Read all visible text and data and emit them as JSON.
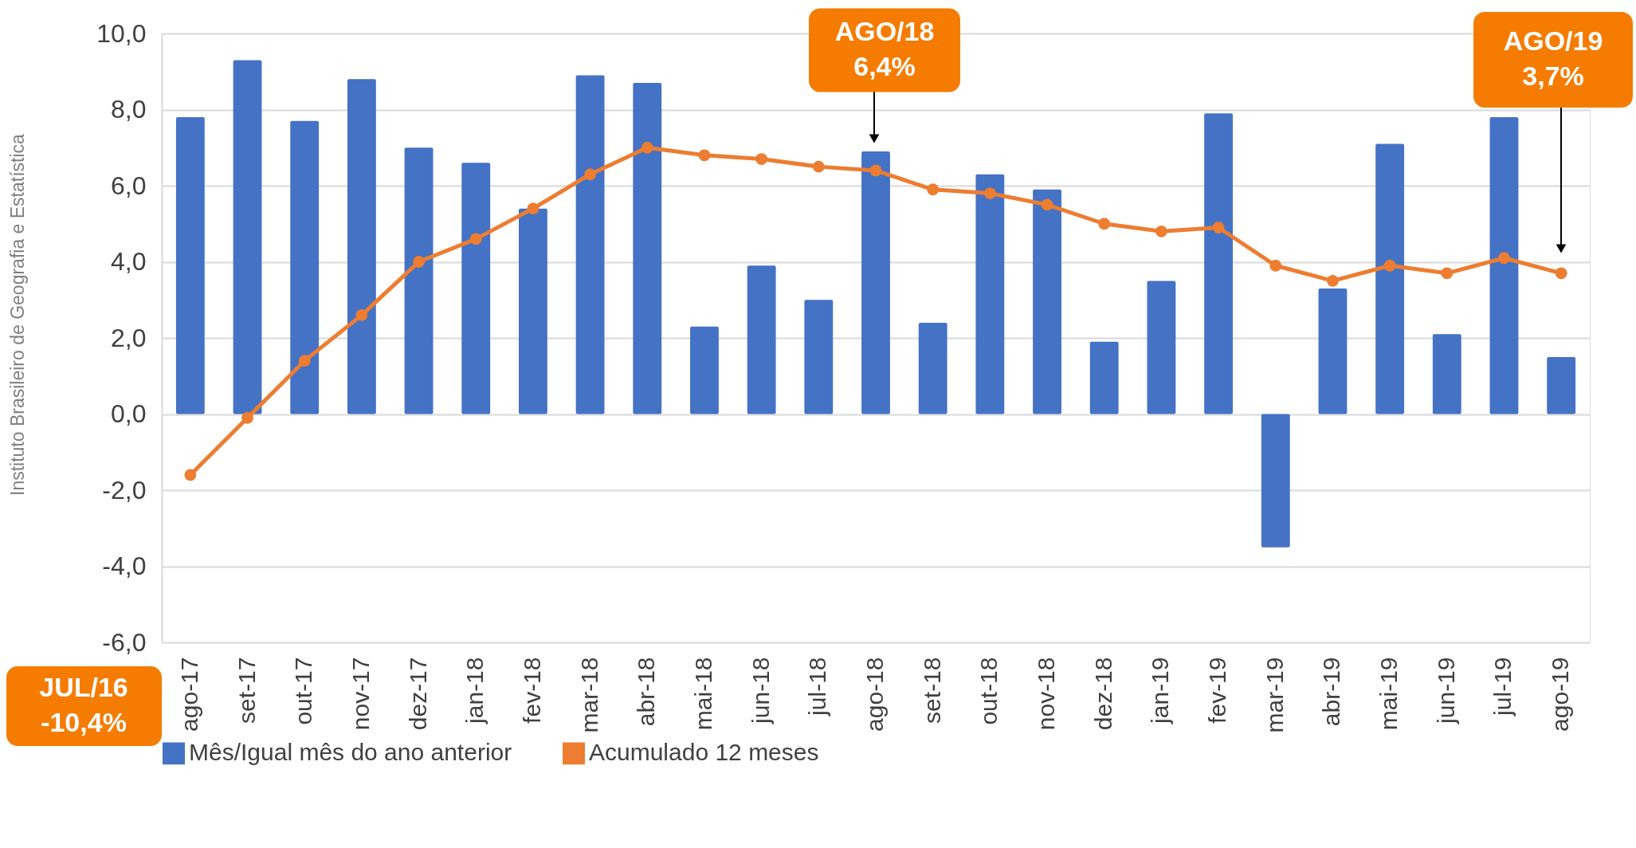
{
  "chart_data": {
    "type": "bar",
    "categories": [
      "ago-17",
      "set-17",
      "out-17",
      "nov-17",
      "dez-17",
      "jan-18",
      "fev-18",
      "mar-18",
      "abr-18",
      "mai-18",
      "jun-18",
      "jul-18",
      "ago-18",
      "set-18",
      "out-18",
      "nov-18",
      "dez-18",
      "jan-19",
      "fev-19",
      "mar-19",
      "abr-19",
      "mai-19",
      "jun-19",
      "jul-19",
      "ago-19"
    ],
    "series": [
      {
        "name": "Mês/Igual mês do ano anterior",
        "color": "#4472c4",
        "values": [
          7.8,
          9.3,
          7.7,
          8.8,
          7.0,
          6.6,
          5.4,
          8.9,
          8.7,
          2.3,
          3.9,
          3.0,
          6.9,
          2.4,
          6.3,
          5.9,
          1.9,
          3.5,
          7.9,
          -3.5,
          3.3,
          7.1,
          2.1,
          7.8,
          1.5
        ]
      },
      {
        "name": "Acumulado 12 meses",
        "type": "line",
        "color": "#ed7d31",
        "marker": "circle",
        "line_style": "solid",
        "values": [
          -1.6,
          -0.1,
          1.4,
          2.6,
          4.0,
          4.6,
          5.4,
          6.3,
          7.0,
          6.8,
          6.7,
          6.5,
          6.4,
          5.9,
          5.8,
          5.5,
          5.0,
          4.8,
          4.9,
          3.9,
          3.5,
          3.9,
          3.7,
          4.1,
          3.7
        ]
      }
    ],
    "ylim": [
      -6,
      10
    ],
    "yticks": [
      {
        "value": -6,
        "label": "-6,0"
      },
      {
        "value": -4,
        "label": "-4,0"
      },
      {
        "value": -2,
        "label": "-2,0"
      },
      {
        "value": 0,
        "label": "0,0"
      },
      {
        "value": 2,
        "label": "2,0"
      },
      {
        "value": 4,
        "label": "4,0"
      },
      {
        "value": 6,
        "label": "6,0"
      },
      {
        "value": 8,
        "label": "8,0"
      },
      {
        "value": 10,
        "label": "10,0"
      }
    ],
    "grid": "y",
    "legend": "bottom",
    "annotations": [
      "AGO/18\n6,4%",
      "AGO/19\n3,7%",
      "JUL/16\n-10,4%",
      "Instituto Brasileiro de Geografia e Estatística"
    ]
  }
}
